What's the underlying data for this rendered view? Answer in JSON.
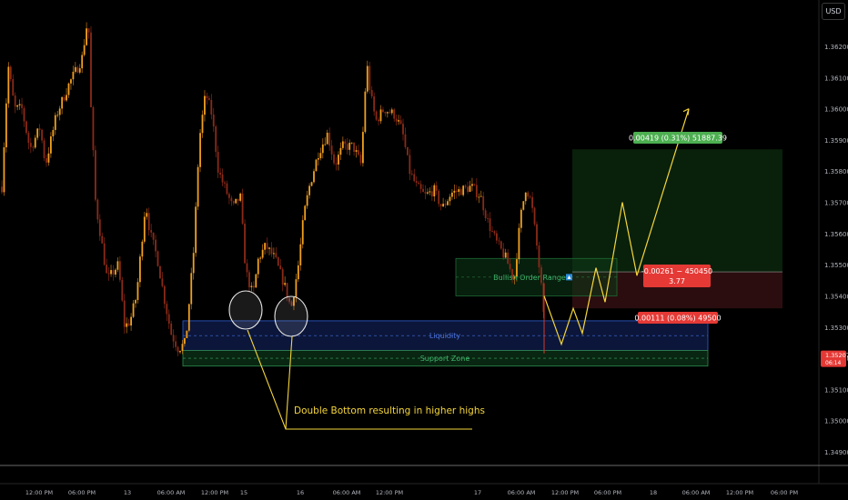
{
  "currency_button": "USD",
  "chart_data": {
    "type": "candlestick",
    "title": "",
    "y_axis": {
      "ticks": [
        "1.36200",
        "1.36100",
        "1.36000",
        "1.35900",
        "1.35800",
        "1.35700",
        "1.35600",
        "1.35500",
        "1.35400",
        "1.35300",
        "1.35200",
        "1.35100",
        "1.35000",
        "1.34900"
      ],
      "range": [
        1.3485,
        1.3632
      ],
      "last_price": "1.35207",
      "countdown": "06:14"
    },
    "x_axis": {
      "ticks": [
        "12:00 PM",
        "06:00 PM",
        "13",
        "06:00 AM",
        "12:00 PM",
        "15",
        "16",
        "06:00 AM",
        "12:00 PM",
        "17",
        "06:00 AM",
        "12:00 PM",
        "06:00 PM",
        "18",
        "06:00 AM",
        "12:00 PM",
        "06:00 PM"
      ]
    },
    "colors": {
      "up": "#f0a020",
      "down": "#8a2a18",
      "wick": "#c07818",
      "path": "#f5d63a",
      "profit_label": "#4caf50",
      "loss_label": "#e53935"
    },
    "zones": {
      "liquidity": "Liquidity",
      "support": "Support Zone",
      "order_range": "Bullish Order Range"
    },
    "position": {
      "target_label": "0.00419 (0.31%) 51887.39",
      "stop_label": "0.00111 (0.08%) 49500",
      "entry_label_line1": "-0.00261 − 450450",
      "entry_label_line2": "3.77"
    },
    "annotation": "Double Bottom resulting in higher highs",
    "key_prices": [
      1.3623,
      1.3573,
      1.3543,
      1.3522,
      1.3541,
      1.3549,
      1.3598
    ]
  }
}
